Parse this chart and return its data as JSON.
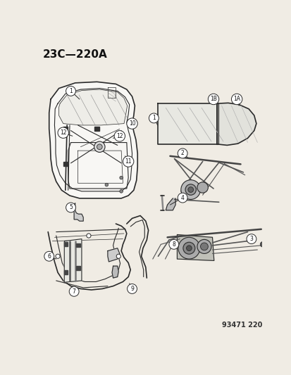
{
  "title": "23C—220A",
  "catalog_number": "93471 220",
  "bg": "#f0ece4",
  "lc": "#2a2a2a",
  "fig_w": 4.14,
  "fig_h": 5.33,
  "dpi": 100,
  "title_fontsize": 11,
  "catalog_fontsize": 7
}
